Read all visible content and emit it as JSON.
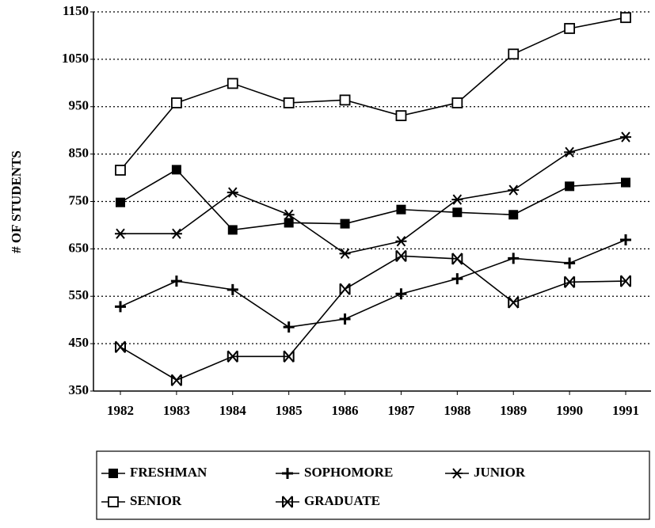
{
  "chart_data": {
    "type": "line",
    "y_label": "# OF STUDENTS",
    "categories": [
      "1982",
      "1983",
      "1984",
      "1985",
      "1986",
      "1987",
      "1988",
      "1989",
      "1990",
      "1991"
    ],
    "series": [
      {
        "name": "FRESHMAN",
        "color": "#000000",
        "values": [
          748,
          817,
          690,
          705,
          703,
          733,
          727,
          722,
          782,
          790
        ]
      },
      {
        "name": "SOPHOMORE",
        "color": "#000000",
        "values": [
          528,
          582,
          564,
          485,
          502,
          555,
          587,
          630,
          620,
          669
        ]
      },
      {
        "name": "JUNIOR",
        "color": "#000000",
        "values": [
          682,
          682,
          769,
          722,
          640,
          666,
          754,
          774,
          854,
          886
        ]
      },
      {
        "name": "SENIOR",
        "color": "#000000",
        "values": [
          816,
          958,
          999,
          958,
          964,
          931,
          958,
          1061,
          1115,
          1138
        ]
      },
      {
        "name": "GRADUATE",
        "color": "#000000",
        "values": [
          443,
          373,
          423,
          423,
          565,
          635,
          629,
          537,
          580,
          582
        ]
      }
    ],
    "ylim": [
      350,
      1150
    ],
    "yticks": [
      350,
      450,
      550,
      650,
      750,
      850,
      950,
      1050,
      1150
    ],
    "grid": true
  }
}
